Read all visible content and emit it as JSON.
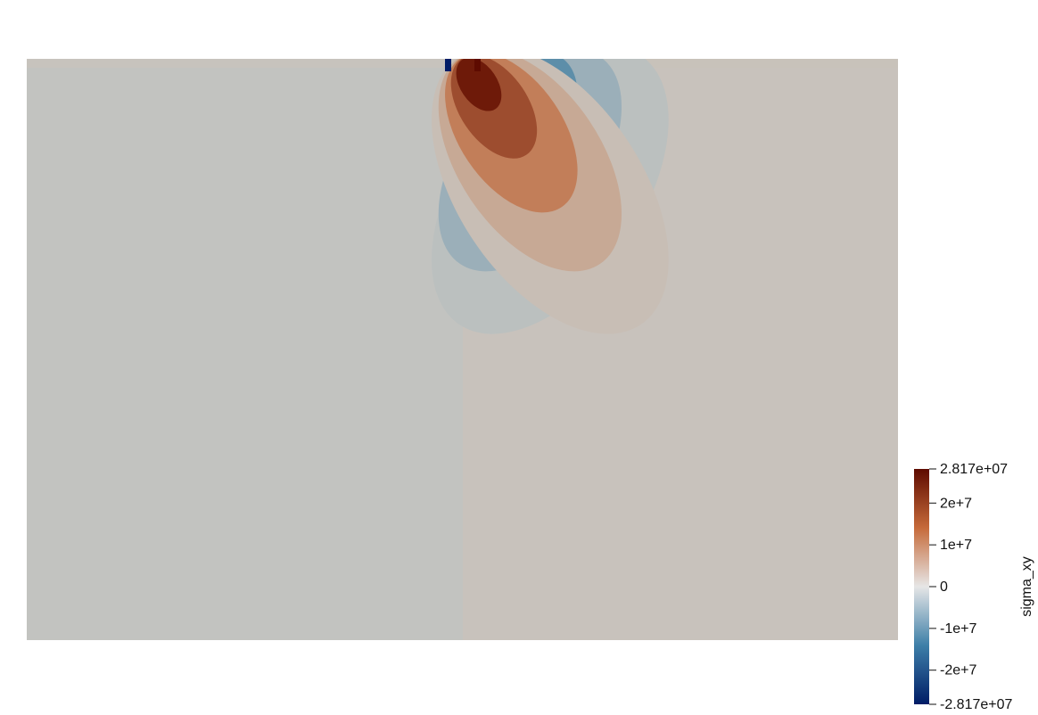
{
  "chart_data": {
    "type": "heatmap",
    "field_name": "sigma_xy",
    "colormap": "Blue-White-Orange-Red diverging",
    "range": [
      -28170000,
      28170000
    ],
    "colorbar": {
      "title": "sigma_xy",
      "ticks": [
        {
          "value": 28170000,
          "label": "2.817e+07"
        },
        {
          "value": 20000000,
          "label": "2e+7"
        },
        {
          "value": 10000000,
          "label": "1e+7"
        },
        {
          "value": 0,
          "label": "0"
        },
        {
          "value": -10000000,
          "label": "-1e+7"
        },
        {
          "value": -20000000,
          "label": "-2e+7"
        },
        {
          "value": -28170000,
          "label": "-2.817e+07"
        }
      ],
      "placement": "bottom-right"
    },
    "field_description": "two-lobe shear stress pattern below a surface point load: negative lobe left, positive lobe right, peaks at the top surface near the load",
    "lobe_contour_levels": [
      -26000000,
      -20000000,
      -14000000,
      -8000000,
      -3000000,
      3000000,
      8000000,
      14000000,
      20000000,
      26000000
    ],
    "background_left": -1500000,
    "background_right": 1500000
  },
  "colors": {
    "min": "#001c66",
    "mid_low": "#3d7fa8",
    "zero": "#e6e6e6",
    "mid_high": "#c66a3a",
    "max": "#5e0b00",
    "background": "#ffffff"
  }
}
